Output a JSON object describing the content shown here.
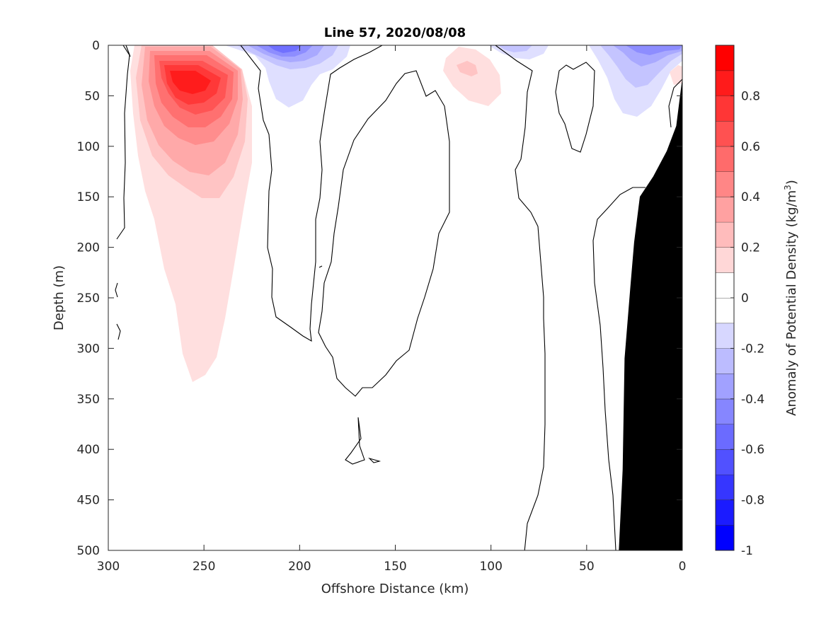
{
  "chart_data": {
    "type": "heatmap",
    "title": "Line 57, 2020/08/08",
    "xlabel": "Offshore Distance (km)",
    "ylabel": "Depth (m)",
    "xlim": [
      300,
      0
    ],
    "ylim": [
      0,
      500
    ],
    "x_reversed": true,
    "y_reversed": true,
    "x_ticks": [
      300,
      250,
      200,
      150,
      100,
      50,
      0
    ],
    "y_ticks": [
      0,
      50,
      100,
      150,
      200,
      250,
      300,
      350,
      400,
      450,
      500
    ],
    "colorbar": {
      "label": "Anomaly of Potential Density (kg/m",
      "label_superscript": "3",
      "label_close": ")",
      "range": [
        -1,
        1
      ],
      "ticks": [
        -1,
        -0.8,
        -0.6,
        -0.4,
        -0.2,
        0,
        0.2,
        0.4,
        0.6,
        0.8
      ],
      "tick_labels": [
        "-1",
        "-0.8",
        "-0.6",
        "-0.4",
        "-0.2",
        "0",
        "0.2",
        "0.4",
        "0.6",
        "0.8"
      ],
      "levels": [
        -1.0,
        -0.9,
        -0.8,
        -0.7,
        -0.6,
        -0.5,
        -0.4,
        -0.3,
        -0.2,
        -0.1,
        0.0,
        0.1,
        0.2,
        0.3,
        0.4,
        0.5,
        0.6,
        0.7,
        0.8,
        0.9,
        1.0
      ]
    },
    "features": [
      {
        "kind": "positive anomaly core",
        "center": [
          257,
          35
        ],
        "peak": 0.9,
        "extent_depth": 330
      },
      {
        "kind": "negative anomaly",
        "center": [
          210,
          10
        ],
        "peak": -0.5
      },
      {
        "kind": "negative anomaly",
        "center": [
          20,
          15
        ],
        "peak": -0.4
      },
      {
        "kind": "positive anomaly",
        "center": [
          110,
          25
        ],
        "peak": 0.25
      }
    ],
    "bathymetry": {
      "color": "#000000",
      "points": [
        [
          33,
          500
        ],
        [
          31,
          420
        ],
        [
          30,
          310
        ],
        [
          27,
          240
        ],
        [
          25,
          195
        ],
        [
          22,
          150
        ],
        [
          15,
          130
        ],
        [
          8,
          105
        ],
        [
          3,
          80
        ],
        [
          0,
          35
        ]
      ]
    },
    "colors": {
      "positive_max": "#ff0000",
      "negative_max": "#0000ff",
      "zero": "#ffffff",
      "bathymetry": "#000000"
    }
  }
}
